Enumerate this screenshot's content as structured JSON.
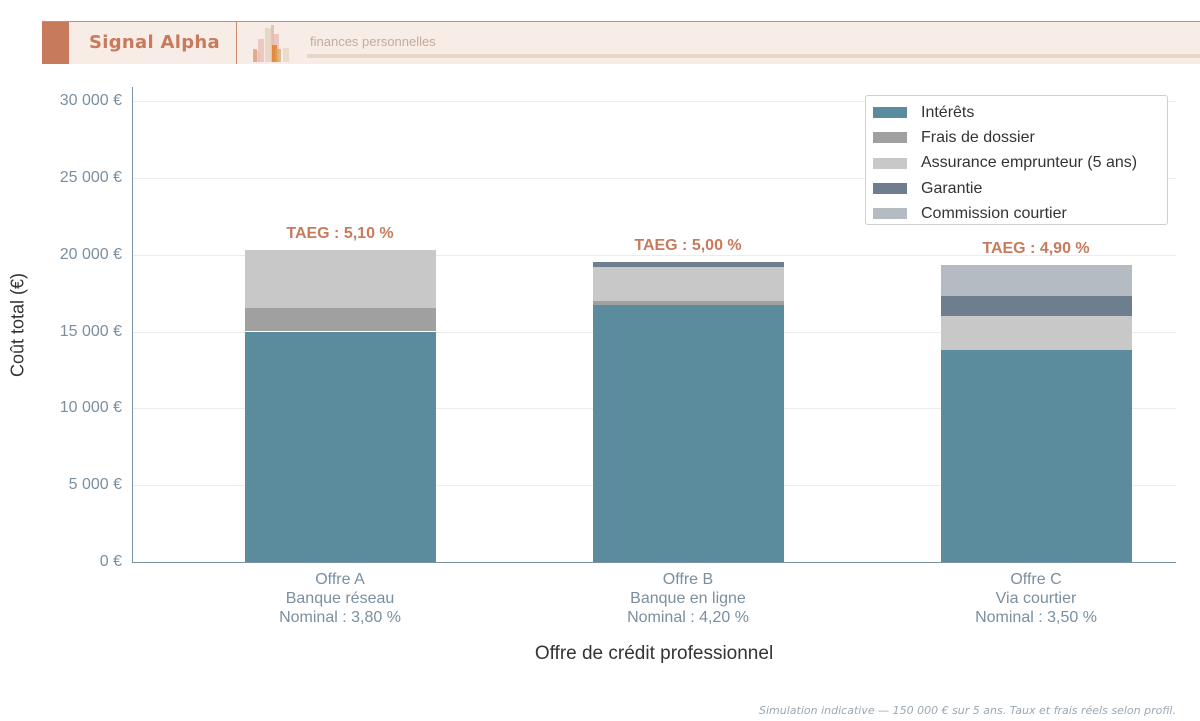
{
  "header": {
    "brand": "Signal Alpha",
    "tagline": "finances personnelles",
    "accent_color": "#c77b5c"
  },
  "footnote": "Simulation indicative — 150 000 € sur 5 ans. Taux et frais réels selon profil.",
  "chart_data": {
    "type": "bar",
    "stacked": true,
    "title": "",
    "xlabel": "Offre de crédit professionnel",
    "ylabel": "Coût total (€)",
    "ylim": [
      0,
      30000
    ],
    "yticks": [
      "0 €",
      "5 000 €",
      "10 000 €",
      "15 000 €",
      "20 000 €",
      "25 000 €",
      "30 000 €"
    ],
    "grid": true,
    "legend_position": "upper right",
    "categories": [
      {
        "line1": "Offre A",
        "line2": "Banque réseau",
        "line3": "Nominal : 3,80 %",
        "taeg": "TAEG : 5,10 %"
      },
      {
        "line1": "Offre B",
        "line2": "Banque en ligne",
        "line3": "Nominal : 4,20 %",
        "taeg": "TAEG : 5,00 %"
      },
      {
        "line1": "Offre C",
        "line2": "Via courtier",
        "line3": "Nominal : 3,50 %",
        "taeg": "TAEG : 4,90 %"
      }
    ],
    "series": [
      {
        "name": "Intérêts",
        "color": "#5b8c9e",
        "values": [
          15000,
          16700,
          13800
        ]
      },
      {
        "name": "Frais de dossier",
        "color": "#a0a0a0",
        "values": [
          1500,
          300,
          0
        ]
      },
      {
        "name": "Assurance emprunteur (5 ans)",
        "color": "#c8c8c8",
        "values": [
          3800,
          2200,
          2200
        ]
      },
      {
        "name": "Garantie",
        "color": "#6e7e8e",
        "values": [
          0,
          300,
          1300
        ]
      },
      {
        "name": "Commission courtier",
        "color": "#b5bbc2",
        "values": [
          0,
          0,
          2000
        ]
      }
    ],
    "totals": [
      20300,
      19500,
      19300
    ]
  }
}
